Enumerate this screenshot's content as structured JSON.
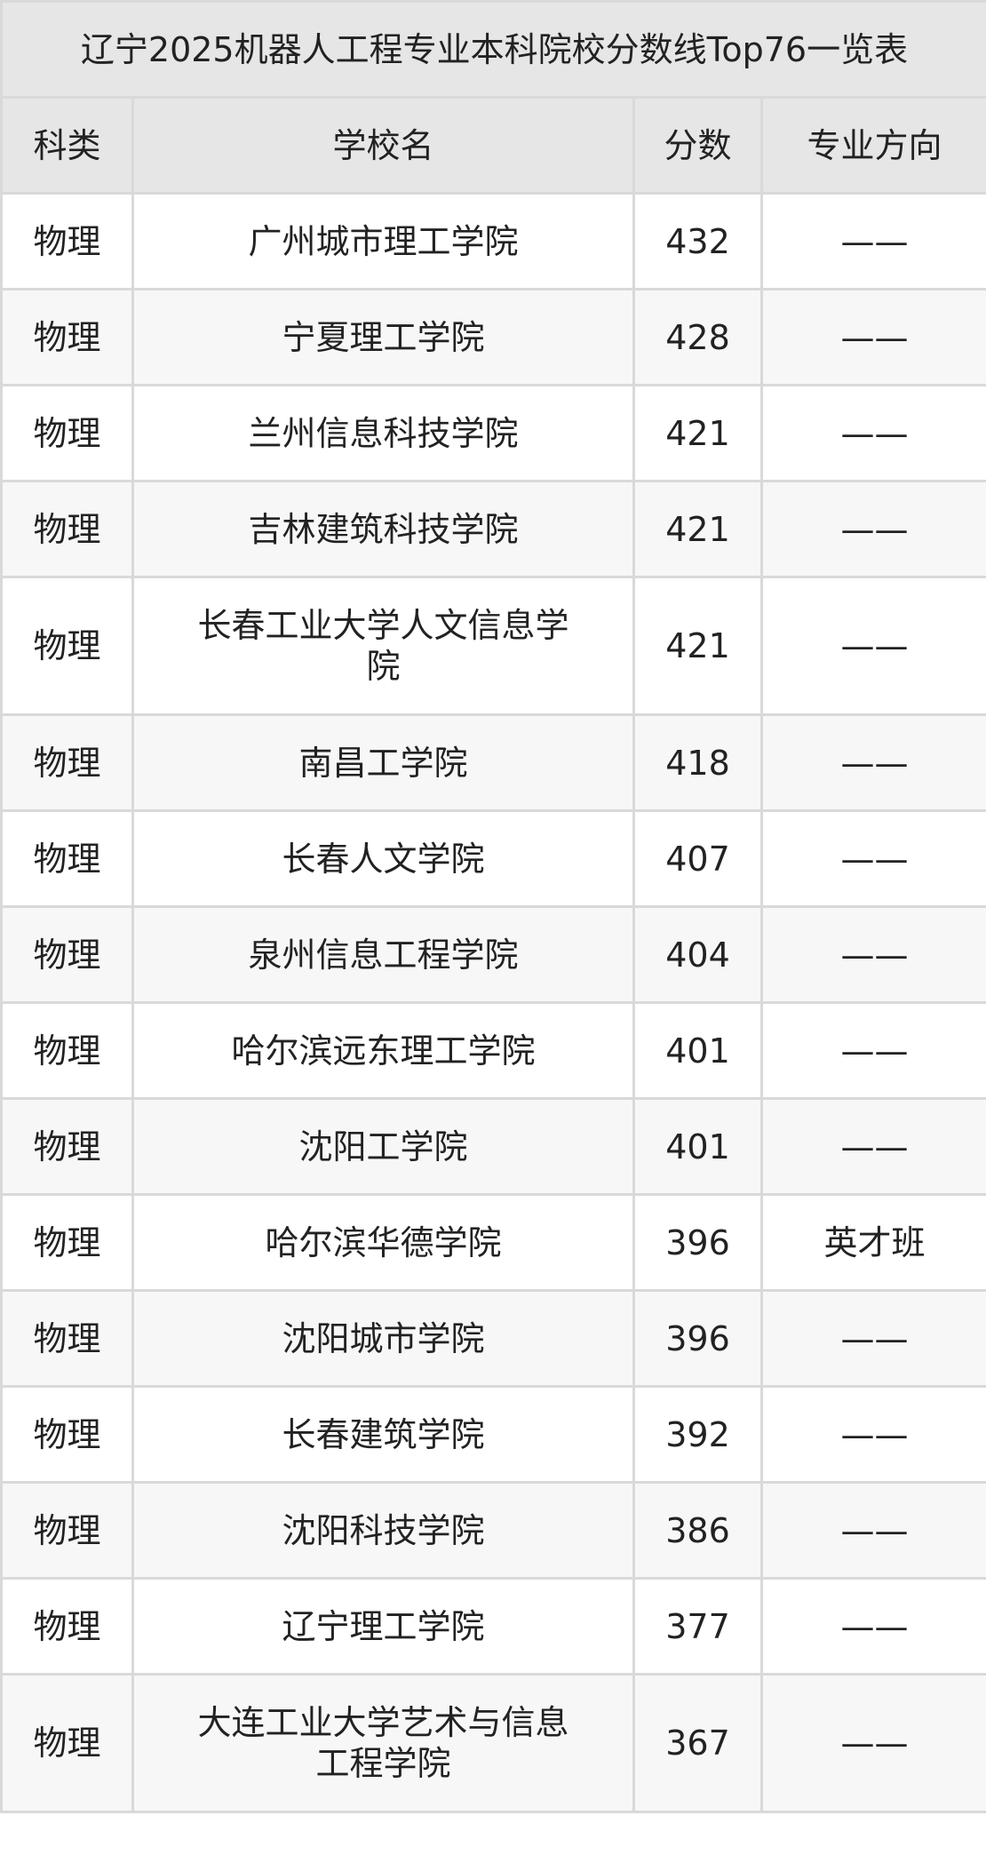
{
  "title": "辽宁2025机器人工程专业本科院校分数线Top76一览表",
  "headers": [
    "科类",
    "学校名",
    "分数",
    "专业方向"
  ],
  "rows": [
    {
      "category": "物理",
      "school": "广州城市理工学院",
      "score": "432",
      "direction": "——"
    },
    {
      "category": "物理",
      "school": "宁夏理工学院",
      "score": "428",
      "direction": "——"
    },
    {
      "category": "物理",
      "school": "兰州信息科技学院",
      "score": "421",
      "direction": "——"
    },
    {
      "category": "物理",
      "school": "吉林建筑科技学院",
      "score": "421",
      "direction": "——"
    },
    {
      "category": "物理",
      "school": "长春工业大学人文信息学院",
      "score": "421",
      "direction": "——"
    },
    {
      "category": "物理",
      "school": "南昌工学院",
      "score": "418",
      "direction": "——"
    },
    {
      "category": "物理",
      "school": "长春人文学院",
      "score": "407",
      "direction": "——"
    },
    {
      "category": "物理",
      "school": "泉州信息工程学院",
      "score": "404",
      "direction": "——"
    },
    {
      "category": "物理",
      "school": "哈尔滨远东理工学院",
      "score": "401",
      "direction": "——"
    },
    {
      "category": "物理",
      "school": "沈阳工学院",
      "score": "401",
      "direction": "——"
    },
    {
      "category": "物理",
      "school": "哈尔滨华德学院",
      "score": "396",
      "direction": "英才班"
    },
    {
      "category": "物理",
      "school": "沈阳城市学院",
      "score": "396",
      "direction": "——"
    },
    {
      "category": "物理",
      "school": "长春建筑学院",
      "score": "392",
      "direction": "——"
    },
    {
      "category": "物理",
      "school": "沈阳科技学院",
      "score": "386",
      "direction": "——"
    },
    {
      "category": "物理",
      "school": "辽宁理工学院",
      "score": "377",
      "direction": "——"
    },
    {
      "category": "物理",
      "school": "大连工业大学艺术与信息工程学院",
      "score": "367",
      "direction": "——"
    }
  ]
}
